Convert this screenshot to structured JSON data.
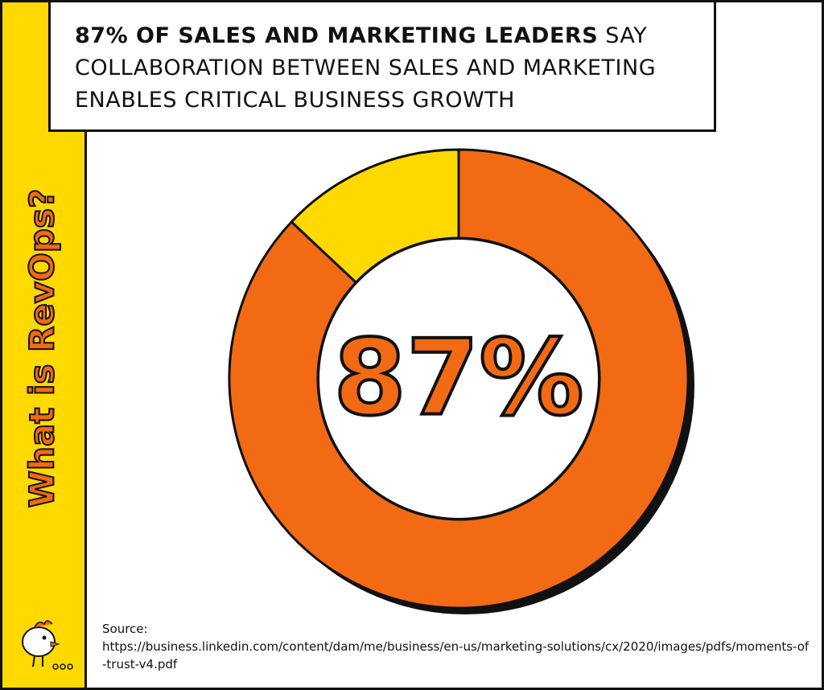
{
  "sidebar": "What is RevOps?",
  "source": {
    "label": "Source:",
    "url": "https://business.linkedin.com/content/dam/me/business/en-us/marketing-solutions/cx/2020/images/pdfs/moments-of-trust-v4.pdf"
  },
  "chart_data": {
    "type": "donut",
    "title": [
      "87% OF SALES AND MARKETING LEADERS",
      "SAY COLLABORATION BETWEEN SALES AND MARKETING ENABLES CRITICAL BUSINESS GROWTH"
    ],
    "values": [
      87,
      13
    ],
    "value_labels": [
      "87%",
      null
    ],
    "colors": [
      "#f26a13",
      "#ffd900"
    ]
  }
}
